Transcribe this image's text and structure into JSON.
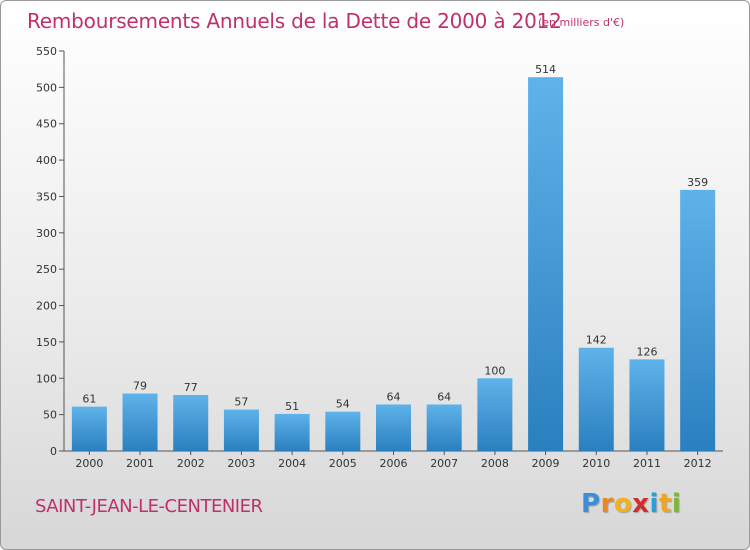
{
  "title": "Remboursements Annuels de la Dette de 2000 à 2012",
  "subtitle": "(en milliers d'€)",
  "commune": "SAINT-JEAN-LE-CENTENIER",
  "logo": {
    "letters": [
      "P",
      "r",
      "o",
      "x",
      "i",
      "t",
      "i"
    ],
    "colors": [
      "#3a8fd6",
      "#e8862a",
      "#f2b21e",
      "#d42b2b",
      "#2a9fd6",
      "#f0a520",
      "#7ab82f"
    ]
  },
  "colors": {
    "title": "#c0306b",
    "bar_light": "#5fb3ea",
    "bar_dark": "#2a7fbf"
  },
  "chart_data": {
    "type": "bar",
    "categories": [
      "2000",
      "2001",
      "2002",
      "2003",
      "2004",
      "2005",
      "2006",
      "2007",
      "2008",
      "2009",
      "2010",
      "2011",
      "2012"
    ],
    "values": [
      61,
      79,
      77,
      57,
      51,
      54,
      64,
      64,
      100,
      514,
      142,
      126,
      359
    ],
    "ylim": [
      0,
      550
    ],
    "yticks": [
      0,
      50,
      100,
      150,
      200,
      250,
      300,
      350,
      400,
      450,
      500,
      550
    ],
    "grid": false,
    "data_labels": true
  }
}
